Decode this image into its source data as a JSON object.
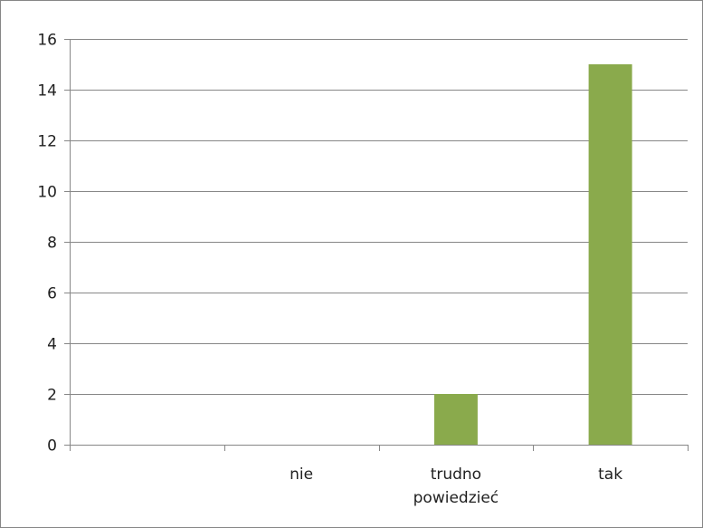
{
  "chart_data": {
    "type": "bar",
    "categories": [
      "",
      "nie",
      "trudno powiedzieć",
      "tak"
    ],
    "category_lines": [
      [
        ""
      ],
      [
        "nie"
      ],
      [
        "trudno",
        "powiedzieć"
      ],
      [
        "tak"
      ]
    ],
    "values": [
      0,
      0,
      2,
      15
    ],
    "ylim": [
      0,
      16
    ],
    "yticks": [
      0,
      2,
      4,
      6,
      8,
      10,
      12,
      14,
      16
    ],
    "grid": true,
    "legend": "none",
    "bar_color": "#8aaa4c",
    "gridline_color": "#878787"
  }
}
